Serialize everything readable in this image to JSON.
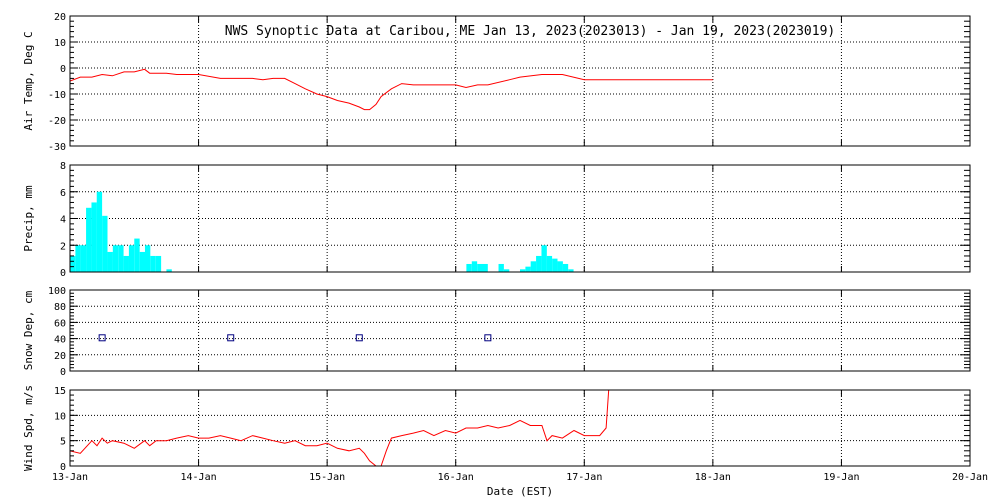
{
  "chart_data": {
    "title": "NWS Synoptic Data at Caribou, ME   Jan 13, 2023(2023013) - Jan 19, 2023(2023019)",
    "xlabel": "Date (EST)",
    "x_tick_labels": [
      "13-Jan",
      "14-Jan",
      "15-Jan",
      "16-Jan",
      "17-Jan",
      "18-Jan",
      "19-Jan",
      "20-Jan"
    ],
    "xlim": [
      0,
      7
    ],
    "grid": true,
    "panels": [
      {
        "type": "line",
        "ylabel": "Air Temp, Deg C",
        "ylim": [
          -30,
          20
        ],
        "y_ticks": [
          20,
          10,
          0,
          -10,
          -20,
          -30
        ],
        "color": "#ff0000",
        "x": [
          0,
          0.08,
          0.17,
          0.25,
          0.33,
          0.42,
          0.5,
          0.58,
          0.62,
          0.67,
          0.75,
          0.83,
          1.0,
          1.17,
          1.25,
          1.33,
          1.42,
          1.5,
          1.58,
          1.67,
          1.75,
          1.83,
          1.92,
          2.0,
          2.08,
          2.17,
          2.25,
          2.29,
          2.33,
          2.38,
          2.42,
          2.5,
          2.58,
          2.67,
          2.75,
          2.83,
          3.0,
          3.08,
          3.17,
          3.25,
          3.42,
          3.5,
          3.67,
          3.75,
          3.83,
          4.0,
          4.08,
          4.25,
          4.5,
          4.75,
          5.0
        ],
        "y": [
          -5,
          -3.5,
          -3.5,
          -2.5,
          -3,
          -1.5,
          -1.5,
          -0.5,
          -2,
          -2,
          -2,
          -2.5,
          -2.5,
          -4,
          -4,
          -4,
          -4,
          -4.5,
          -4,
          -4,
          -6,
          -8,
          -10,
          -11,
          -12.5,
          -13.5,
          -15,
          -16,
          -16,
          -14,
          -11,
          -8,
          -6,
          -6.5,
          -6.5,
          -6.5,
          -6.5,
          -7.5,
          -6.5,
          -6.5,
          -4.5,
          -3.5,
          -2.5,
          -2.5,
          -2.5,
          -4.5,
          -4.5,
          -4.5,
          -4.5,
          -4.5,
          -4.5
        ]
      },
      {
        "type": "bar",
        "ylabel": "Precip, mm",
        "ylim": [
          0,
          8
        ],
        "y_ticks": [
          8,
          6,
          4,
          2,
          0
        ],
        "color": "#00ffff",
        "bar_width": 0.0417,
        "x": [
          0,
          0.042,
          0.083,
          0.125,
          0.167,
          0.208,
          0.25,
          0.292,
          0.333,
          0.375,
          0.417,
          0.458,
          0.5,
          0.542,
          0.583,
          0.625,
          0.667,
          0.708,
          0.75,
          3.083,
          3.125,
          3.167,
          3.208,
          3.333,
          3.375,
          3.5,
          3.542,
          3.583,
          3.625,
          3.667,
          3.708,
          3.75,
          3.792,
          3.833,
          3.875
        ],
        "values": [
          1.2,
          2.0,
          2.0,
          4.8,
          5.2,
          6.0,
          4.2,
          1.5,
          2.0,
          2.0,
          1.2,
          2.0,
          2.5,
          1.5,
          2.0,
          1.2,
          1.2,
          0,
          0.2,
          0.6,
          0.8,
          0.6,
          0.6,
          0.6,
          0.2,
          0.2,
          0.4,
          0.8,
          1.2,
          2.0,
          1.2,
          1.0,
          0.8,
          0.6,
          0.2
        ]
      },
      {
        "type": "scatter",
        "ylabel": "Snow Dep, cm",
        "ylim": [
          0,
          100
        ],
        "y_ticks": [
          100,
          80,
          60,
          40,
          20,
          0
        ],
        "color": "#000080",
        "x": [
          0.25,
          1.25,
          2.25,
          3.25
        ],
        "y": [
          41,
          41,
          41,
          41
        ]
      },
      {
        "type": "line",
        "ylabel": "Wind Spd, m/s",
        "ylim": [
          0,
          15
        ],
        "y_ticks": [
          15,
          10,
          5,
          0
        ],
        "color": "#ff0000",
        "x": [
          0,
          0.08,
          0.17,
          0.21,
          0.25,
          0.29,
          0.33,
          0.42,
          0.5,
          0.58,
          0.62,
          0.67,
          0.75,
          0.83,
          0.92,
          1.0,
          1.08,
          1.17,
          1.25,
          1.33,
          1.42,
          1.5,
          1.58,
          1.67,
          1.75,
          1.83,
          1.92,
          2.0,
          2.08,
          2.17,
          2.25,
          2.29,
          2.33,
          2.38,
          2.42,
          2.46,
          2.5,
          2.58,
          2.67,
          2.75,
          2.83,
          2.92,
          3.0,
          3.08,
          3.17,
          3.25,
          3.33,
          3.42,
          3.5,
          3.58,
          3.67,
          3.71,
          3.75,
          3.83,
          3.92,
          4.0,
          4.08,
          4.12,
          4.17,
          4.19
        ],
        "y": [
          3,
          2.5,
          5,
          4,
          5.5,
          4.5,
          5,
          4.5,
          3.5,
          5,
          4,
          5,
          5,
          5.5,
          6,
          5.5,
          5.5,
          6,
          5.5,
          5,
          6,
          5.5,
          5,
          4.5,
          5,
          4,
          4,
          4.5,
          3.5,
          3,
          3.5,
          2.5,
          1,
          0,
          0,
          3,
          5.5,
          6,
          6.5,
          7,
          6,
          7,
          6.5,
          7.5,
          7.5,
          8,
          7.5,
          8,
          9,
          8,
          8,
          5,
          6,
          5.5,
          7,
          6,
          6,
          6,
          7.5,
          15
        ]
      }
    ]
  }
}
